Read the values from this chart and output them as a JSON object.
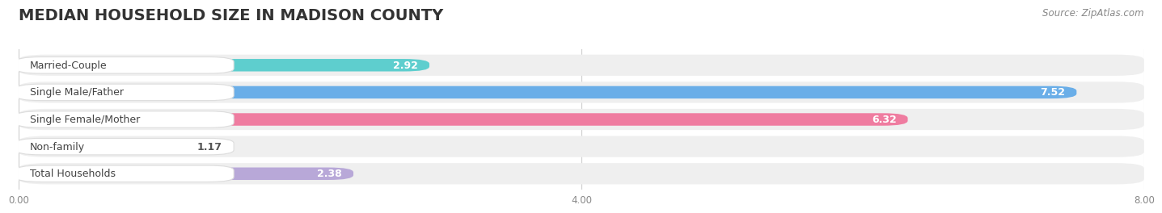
{
  "title": "MEDIAN HOUSEHOLD SIZE IN MADISON COUNTY",
  "source": "Source: ZipAtlas.com",
  "categories": [
    "Married-Couple",
    "Single Male/Father",
    "Single Female/Mother",
    "Non-family",
    "Total Households"
  ],
  "values": [
    2.92,
    7.52,
    6.32,
    1.17,
    2.38
  ],
  "bar_colors": [
    "#5ecece",
    "#6aaee8",
    "#ef7ca0",
    "#f7d0a5",
    "#b8a8d8"
  ],
  "xlim_max": 8.0,
  "xticks": [
    0.0,
    4.0,
    8.0
  ],
  "xtick_labels": [
    "0.00",
    "4.00",
    "8.00"
  ],
  "bg_color": "#ffffff",
  "row_bg_color": "#efefef",
  "bar_bg_color": "#e8e8e8",
  "title_fontsize": 14,
  "label_fontsize": 9,
  "value_fontsize": 9
}
